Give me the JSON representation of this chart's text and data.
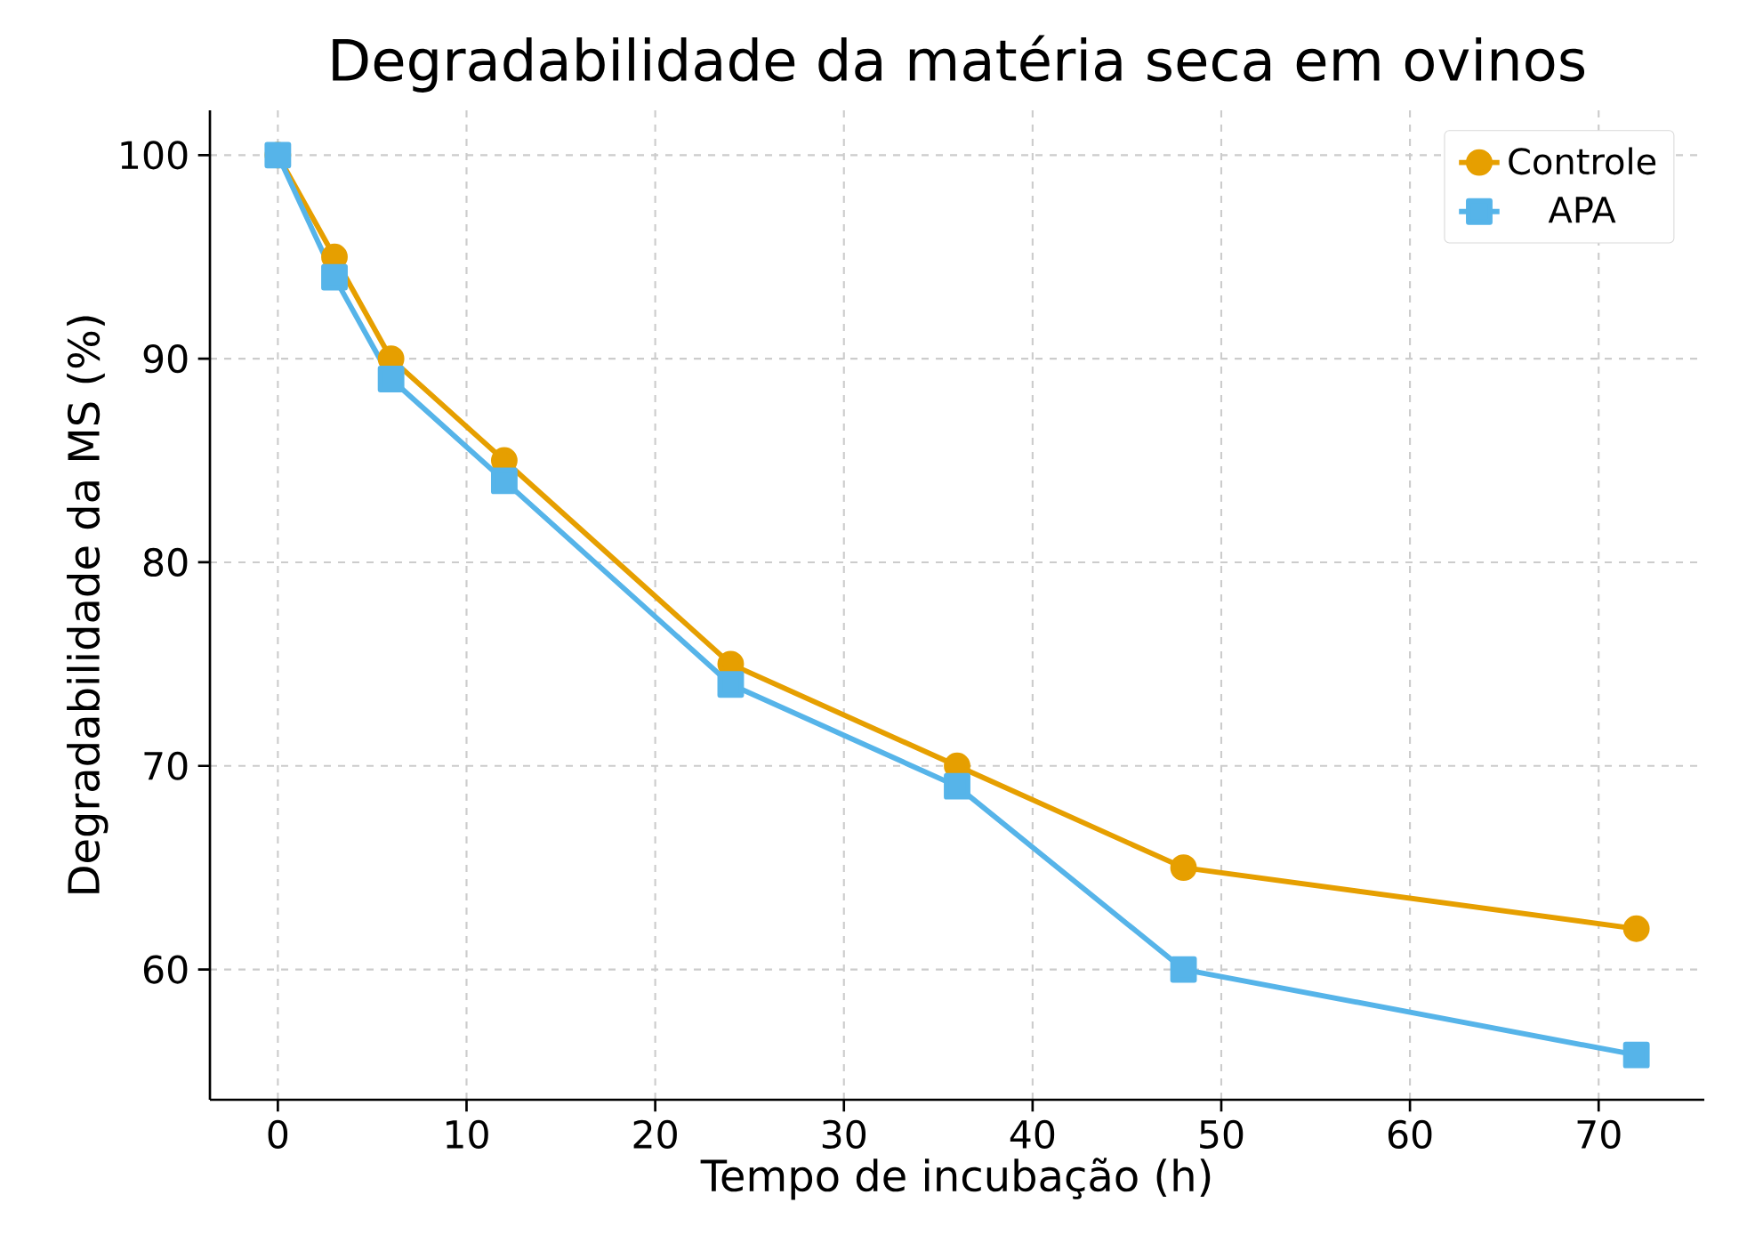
{
  "chart_data": {
    "type": "line",
    "title": "Degradabilidade da matéria seca em ovinos",
    "xlabel": "Tempo de incubação (h)",
    "ylabel": "Degradabilidade da MS (%)",
    "x": [
      0,
      3,
      6,
      12,
      24,
      36,
      48,
      72
    ],
    "series": [
      {
        "name": "Controle",
        "color": "#e69f00",
        "marker": "circle",
        "values": [
          100,
          95,
          90,
          85,
          75,
          70,
          65,
          62
        ]
      },
      {
        "name": "APA",
        "color": "#56b4e9",
        "marker": "square",
        "values": [
          100,
          94,
          89,
          84,
          74,
          69,
          60,
          55.8
        ]
      }
    ],
    "xlim": [
      -3.6,
      75.6
    ],
    "ylim": [
      53.6,
      102.2
    ],
    "xticks": [
      0,
      10,
      20,
      30,
      40,
      50,
      60,
      70
    ],
    "yticks": [
      60,
      70,
      80,
      90,
      100
    ],
    "grid": true,
    "legend": "top right",
    "line_style": "solid"
  }
}
